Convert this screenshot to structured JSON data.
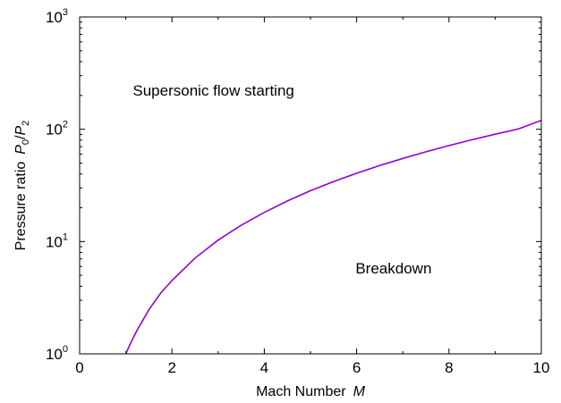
{
  "chart_data": {
    "type": "line",
    "title": "",
    "xlabel": {
      "text": "Mach Number",
      "symbol": "M"
    },
    "ylabel": {
      "text": "Pressure ratio",
      "symbol_p": "P",
      "num_sub": "0",
      "slash": "/",
      "den_p": "P",
      "den_sub": "2"
    },
    "xlim": [
      0,
      10
    ],
    "ylim": [
      1,
      1000
    ],
    "yscale": "log",
    "grid": false,
    "x_ticks": [
      "0",
      "2",
      "4",
      "6",
      "8",
      "10"
    ],
    "y_ticks": [
      {
        "base": "10",
        "exp": "0"
      },
      {
        "base": "10",
        "exp": "1"
      },
      {
        "base": "10",
        "exp": "2"
      },
      {
        "base": "10",
        "exp": "3"
      }
    ],
    "series": [
      {
        "color": "#9400d3",
        "x": [
          1,
          1.1,
          1.25,
          1.5,
          1.75,
          2,
          2.5,
          3,
          3.5,
          4,
          4.5,
          5,
          5.5,
          6,
          6.5,
          7,
          7.5,
          8,
          8.5,
          9,
          9.5,
          10
        ],
        "y": [
          1.0,
          1.24,
          1.64,
          2.47,
          3.45,
          4.5,
          7.13,
          10.3,
          14.0,
          18.2,
          23.0,
          28.4,
          34.2,
          40.6,
          47.5,
          55.0,
          63.0,
          71.6,
          80.7,
          90.3,
          100.5,
          120.0
        ]
      }
    ],
    "annotations": [
      {
        "text": "Supersonic flow starting",
        "x": 2.9,
        "y": 200
      },
      {
        "text": "Breakdown",
        "x": 6.8,
        "y": 5.2
      }
    ]
  }
}
